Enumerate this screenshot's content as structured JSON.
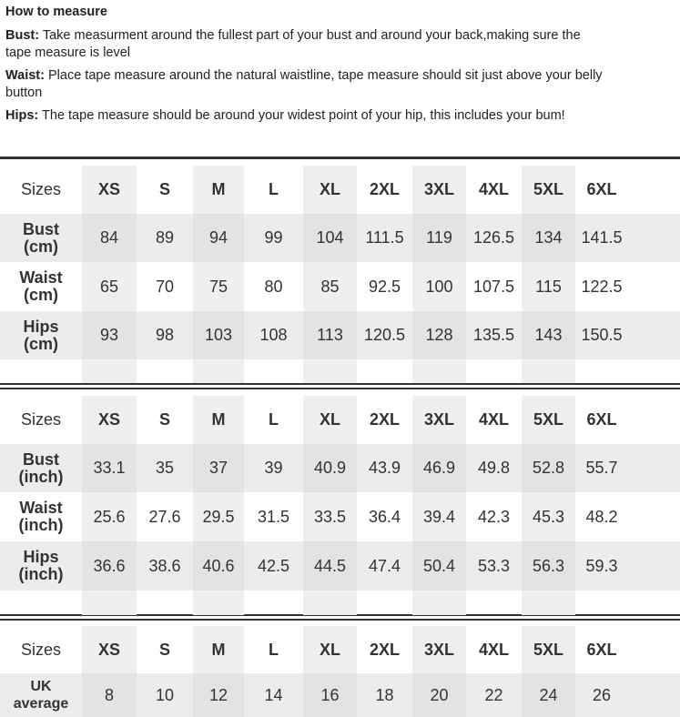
{
  "intro": {
    "title": "How to measure",
    "items": [
      {
        "label": "Bust:",
        "text": " Take measurment around the fullest part of your bust and around your back,making sure the",
        "text2": "tape measure is level"
      },
      {
        "label": "Waist:",
        "text": " Place tape measure around the natural waistline, tape measure should sit just above your belly",
        "text2": "button"
      },
      {
        "label": "Hips:",
        "text": " The tape measure should be around your widest point of your hip, this includes your bum!",
        "text2": ""
      }
    ]
  },
  "tables": [
    {
      "header_label": "Sizes",
      "sizes": [
        "XS",
        "S",
        "M",
        "L",
        "XL",
        "2XL",
        "3XL",
        "4XL",
        "5XL",
        "6XL"
      ],
      "rows": [
        {
          "label": [
            "Bust",
            "(cm)"
          ],
          "values": [
            "84",
            "89",
            "94",
            "99",
            "104",
            "111.5",
            "119",
            "126.5",
            "134",
            "141.5"
          ]
        },
        {
          "label": [
            "Waist",
            "(cm)"
          ],
          "values": [
            "65",
            "70",
            "75",
            "80",
            "85",
            "92.5",
            "100",
            "107.5",
            "115",
            "122.5"
          ]
        },
        {
          "label": [
            "Hips",
            "(cm)"
          ],
          "values": [
            "93",
            "98",
            "103",
            "108",
            "113",
            "120.5",
            "128",
            "135.5",
            "143",
            "150.5"
          ]
        }
      ],
      "blank_row": true
    },
    {
      "header_label": "Sizes",
      "sizes": [
        "XS",
        "S",
        "M",
        "L",
        "XL",
        "2XL",
        "3XL",
        "4XL",
        "5XL",
        "6XL"
      ],
      "rows": [
        {
          "label": [
            "Bust",
            "(inch)"
          ],
          "values": [
            "33.1",
            "35",
            "37",
            "39",
            "40.9",
            "43.9",
            "46.9",
            "49.8",
            "52.8",
            "55.7"
          ]
        },
        {
          "label": [
            "Waist",
            "(inch)"
          ],
          "values": [
            "25.6",
            "27.6",
            "29.5",
            "31.5",
            "33.5",
            "36.4",
            "39.4",
            "42.3",
            "45.3",
            "48.2"
          ]
        },
        {
          "label": [
            "Hips",
            "(inch)"
          ],
          "values": [
            "36.6",
            "38.6",
            "40.6",
            "42.5",
            "44.5",
            "47.4",
            "50.4",
            "53.3",
            "56.3",
            "59.3"
          ]
        }
      ],
      "blank_row": true
    },
    {
      "header_label": "Sizes",
      "sizes": [
        "XS",
        "S",
        "M",
        "L",
        "XL",
        "2XL",
        "3XL",
        "4XL",
        "5XL",
        "6XL"
      ],
      "rows": [
        {
          "label": [
            "UK",
            "average"
          ],
          "values": [
            "8",
            "10",
            "12",
            "14",
            "16",
            "18",
            "20",
            "22",
            "24",
            "26"
          ]
        }
      ],
      "blank_row": false
    }
  ]
}
